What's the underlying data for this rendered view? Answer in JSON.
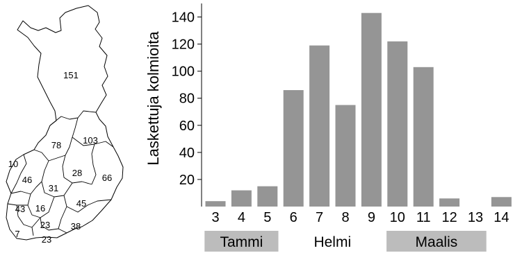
{
  "map": {
    "regions": [
      {
        "id": "lappi",
        "label": "151"
      },
      {
        "id": "kainuu",
        "label": "103"
      },
      {
        "id": "pohjois-pohjanmaa",
        "label": "78"
      },
      {
        "id": "pohjanmaa",
        "label": "10"
      },
      {
        "id": "etela-pohjanmaa",
        "label": "46"
      },
      {
        "id": "keski-suomi",
        "label": "31"
      },
      {
        "id": "pohjois-savo",
        "label": "28"
      },
      {
        "id": "pohjois-karjala",
        "label": "66"
      },
      {
        "id": "satakunta",
        "label": "43"
      },
      {
        "id": "pirkanmaa",
        "label": "16"
      },
      {
        "id": "etela-savo",
        "label": "45"
      },
      {
        "id": "hame",
        "label": "23"
      },
      {
        "id": "kymenlaakso",
        "label": "38"
      },
      {
        "id": "varsinais-suomi",
        "label": "7"
      },
      {
        "id": "uusimaa",
        "label": "23"
      }
    ]
  },
  "chart_data": {
    "type": "bar",
    "categories": [
      "3",
      "4",
      "5",
      "6",
      "7",
      "8",
      "9",
      "10",
      "11",
      "12",
      "13",
      "14"
    ],
    "values": [
      4,
      12,
      15,
      86,
      119,
      75,
      143,
      122,
      103,
      6,
      0,
      7
    ],
    "title": "",
    "xlabel": "",
    "ylabel": "Laskettuja kolmioita",
    "ylim": [
      0,
      150
    ],
    "yticks": [
      20,
      40,
      60,
      80,
      100,
      120,
      140
    ],
    "grid": false,
    "bar_color": "#959595",
    "month_bands": [
      {
        "label": "Tammi",
        "from": "3",
        "to": "5",
        "shaded": true,
        "color": "#bcbcbc"
      },
      {
        "label": "Helmi",
        "from": "6",
        "to": "9",
        "shaded": false,
        "color": "#ffffff"
      },
      {
        "label": "Maalis",
        "from": "10",
        "to": "13",
        "shaded": true,
        "color": "#bcbcbc"
      }
    ]
  }
}
